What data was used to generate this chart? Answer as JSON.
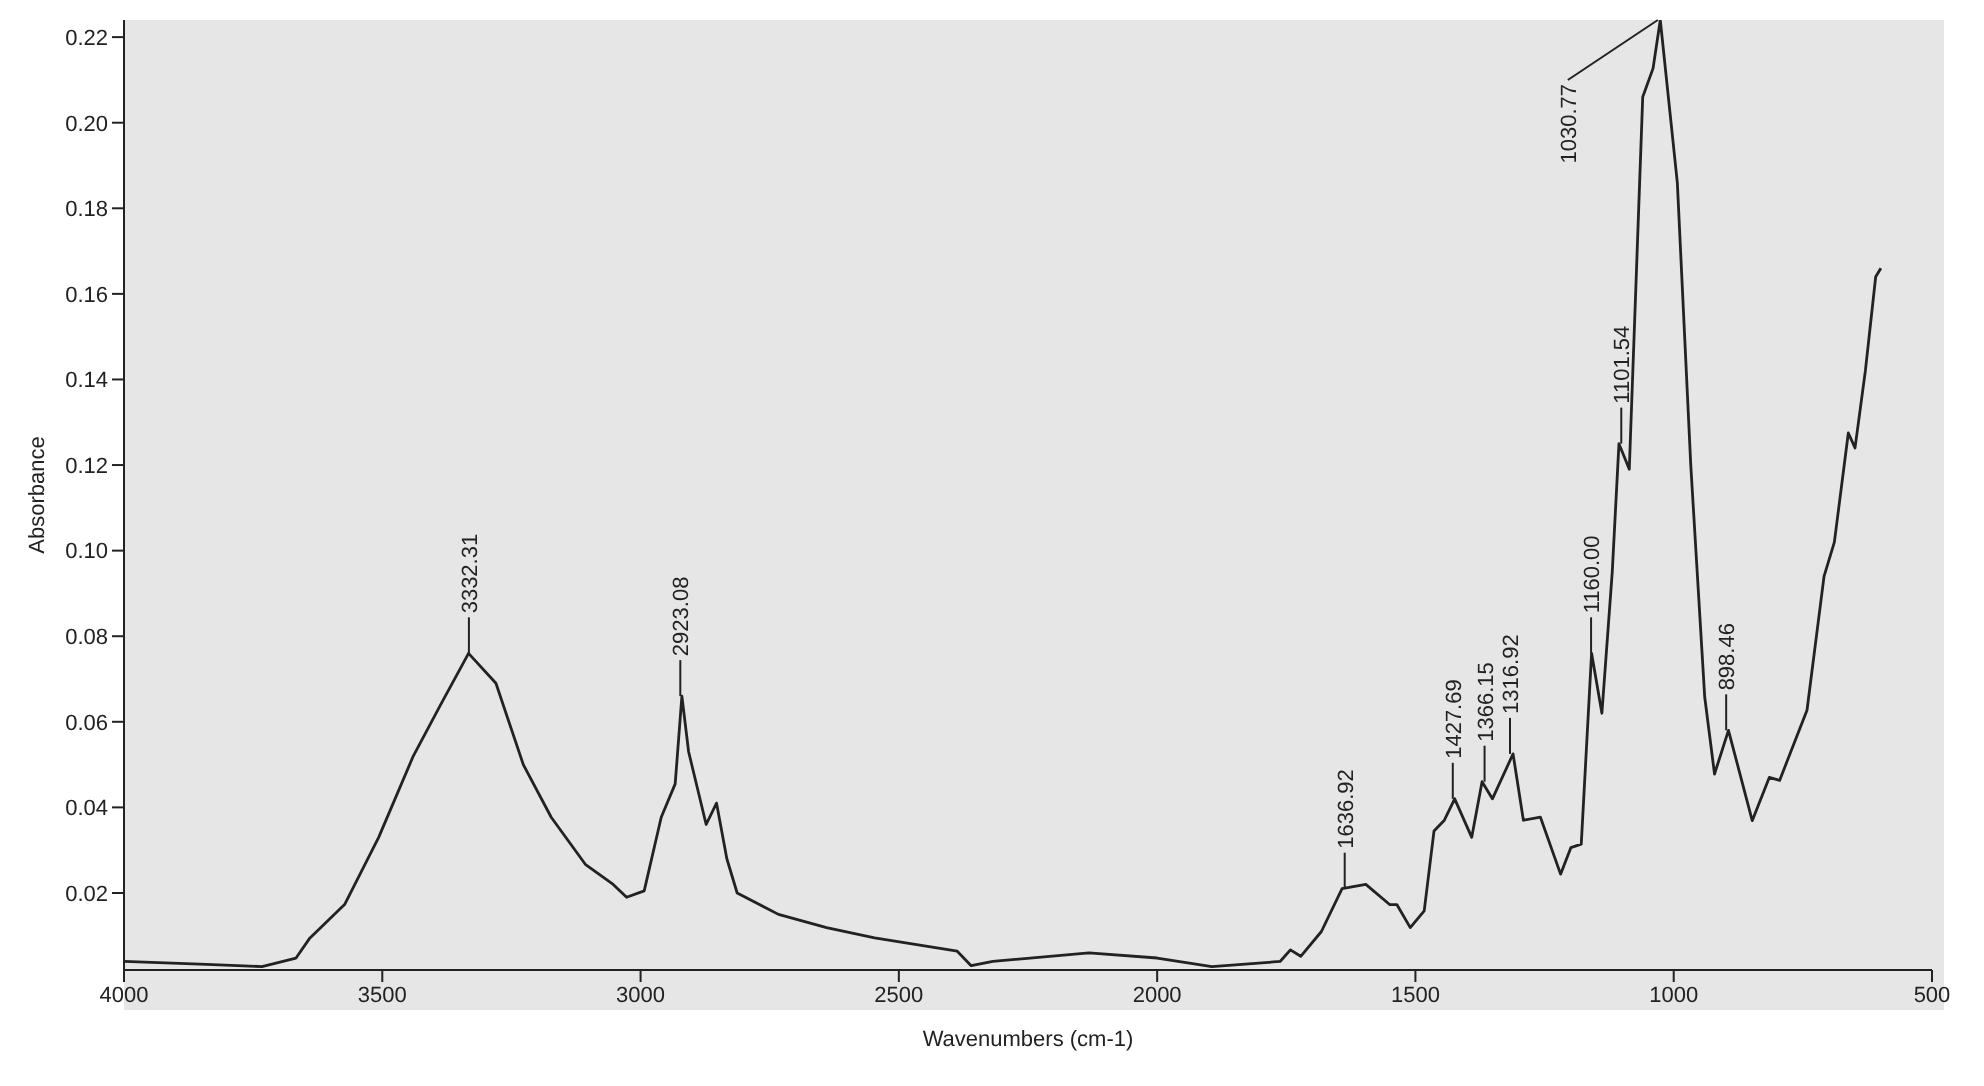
{
  "chart_data": {
    "type": "line",
    "xlabel": "Wavenumbers (cm-1)",
    "ylabel": "Absorbance",
    "grid": false,
    "legend": false,
    "marker": "none",
    "line_style": "solid",
    "xlim": [
      4000,
      500
    ],
    "xticks": [
      4000,
      3500,
      3000,
      2500,
      2000,
      1500,
      1000,
      500
    ],
    "ylim": [
      0.002,
      0.224
    ],
    "yticks": [
      {
        "value": 0.02,
        "label": "0.02"
      },
      {
        "value": 0.04,
        "label": "0.04"
      },
      {
        "value": 0.06,
        "label": "0.06"
      },
      {
        "value": 0.08,
        "label": "0.08"
      },
      {
        "value": 0.1,
        "label": "0.10"
      },
      {
        "value": 0.12,
        "label": "0.12"
      },
      {
        "value": 0.14,
        "label": "0.14"
      },
      {
        "value": 0.16,
        "label": "0.16"
      },
      {
        "value": 0.18,
        "label": "0.18"
      },
      {
        "value": 0.2,
        "label": "0.20"
      },
      {
        "value": 0.22,
        "label": "0.22"
      }
    ],
    "series": [
      {
        "color": "#222222",
        "x": [
          4000,
          3840,
          3733,
          3667,
          3640,
          3573,
          3507,
          3440,
          3387,
          3333,
          3280,
          3227,
          3173,
          3107,
          3053,
          3027,
          2993,
          2960,
          2933,
          2920,
          2907,
          2873,
          2853,
          2833,
          2813,
          2733,
          2640,
          2547,
          2387,
          2360,
          2318,
          2132,
          2000,
          1894,
          1762,
          1742,
          1722,
          1682,
          1642,
          1596,
          1550,
          1536,
          1510,
          1483,
          1464,
          1444,
          1424,
          1391,
          1371,
          1351,
          1311,
          1291,
          1258,
          1219,
          1199,
          1179,
          1159,
          1139,
          1119,
          1106,
          1086,
          1060,
          1040,
          1026,
          993,
          967,
          940,
          921,
          894,
          848,
          815,
          795,
          742,
          709,
          689,
          662,
          649,
          629,
          609,
          599
        ],
        "values": [
          0.004,
          0.0033,
          0.0028,
          0.0048,
          0.0095,
          0.0173,
          0.033,
          0.052,
          0.064,
          0.076,
          0.069,
          0.05,
          0.0377,
          0.0267,
          0.022,
          0.019,
          0.0205,
          0.0377,
          0.0455,
          0.066,
          0.053,
          0.036,
          0.041,
          0.028,
          0.02,
          0.015,
          0.0119,
          0.0095,
          0.0064,
          0.003,
          0.004,
          0.006,
          0.0048,
          0.0028,
          0.004,
          0.0067,
          0.0052,
          0.011,
          0.021,
          0.022,
          0.0173,
          0.0173,
          0.0119,
          0.0158,
          0.0345,
          0.037,
          0.042,
          0.033,
          0.046,
          0.042,
          0.0525,
          0.037,
          0.0377,
          0.0244,
          0.0306,
          0.0314,
          0.076,
          0.062,
          0.095,
          0.125,
          0.119,
          0.206,
          0.2127,
          0.224,
          0.186,
          0.12,
          0.0658,
          0.0478,
          0.058,
          0.0369,
          0.047,
          0.0463,
          0.0627,
          0.094,
          0.102,
          0.1275,
          0.124,
          0.142,
          0.164,
          0.166
        ]
      }
    ],
    "annotations": [
      {
        "text": "3332.31",
        "x": 3332.31,
        "y": 0.076
      },
      {
        "text": "2923.08",
        "x": 2923.08,
        "y": 0.066
      },
      {
        "text": "1636.92",
        "x": 1636.92,
        "y": 0.021
      },
      {
        "text": "1427.69",
        "x": 1427.69,
        "y": 0.042
      },
      {
        "text": "1366.15",
        "x": 1366.15,
        "y": 0.046
      },
      {
        "text": "1316.92",
        "x": 1316.92,
        "y": 0.0525
      },
      {
        "text": "1160.00",
        "x": 1160.0,
        "y": 0.076
      },
      {
        "text": "1101.54",
        "x": 1101.54,
        "y": 0.125
      },
      {
        "text": "1030.77",
        "x": 1030.77,
        "y": 0.224
      },
      {
        "text": "898.46",
        "x": 898.46,
        "y": 0.058
      }
    ]
  }
}
